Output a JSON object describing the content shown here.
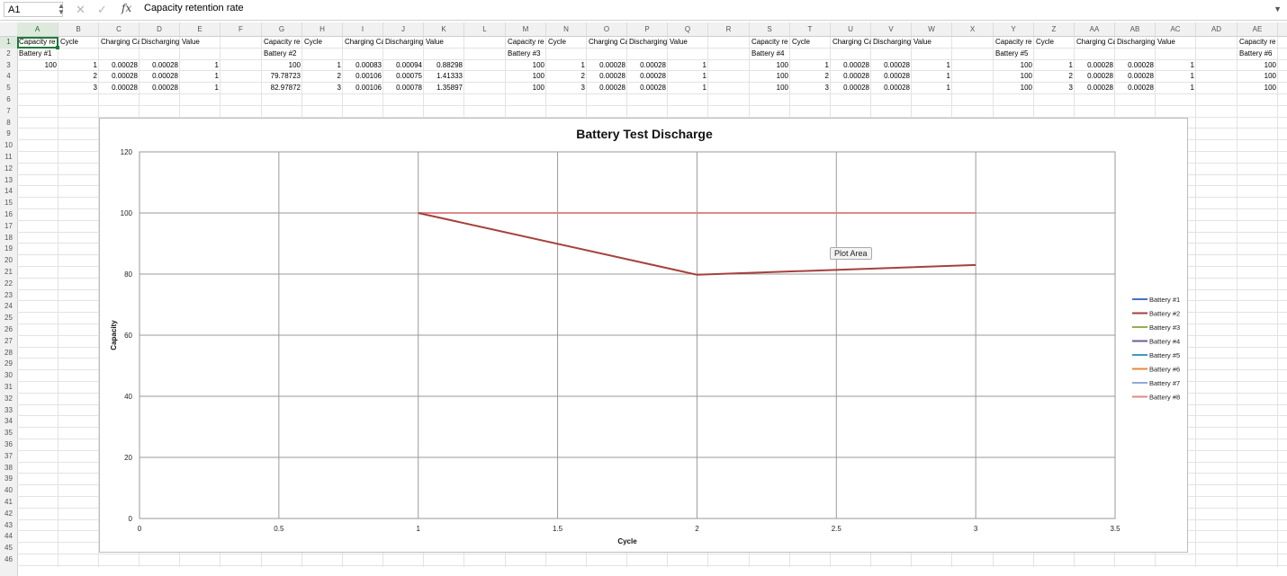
{
  "formula_bar": {
    "name_box": "A1",
    "fx_label": "fx",
    "formula": "Capacity retention rate"
  },
  "columns": [
    "A",
    "B",
    "C",
    "D",
    "E",
    "F",
    "G",
    "H",
    "I",
    "J",
    "K",
    "L",
    "M",
    "N",
    "O",
    "P",
    "Q",
    "R",
    "S",
    "T",
    "U",
    "V",
    "W",
    "X",
    "Y",
    "Z",
    "AA",
    "AB",
    "AC",
    "AD",
    "AE"
  ],
  "rows": [
    "1",
    "2",
    "3",
    "4",
    "5",
    "6",
    "7",
    "8",
    "9",
    "10",
    "11",
    "12",
    "13",
    "14",
    "15",
    "16",
    "17",
    "18",
    "19",
    "20",
    "21",
    "22",
    "23",
    "24",
    "25",
    "26",
    "27",
    "28",
    "29",
    "30",
    "31",
    "32",
    "33",
    "34",
    "35",
    "36",
    "37",
    "38",
    "39",
    "40",
    "41",
    "42",
    "43",
    "44",
    "45",
    "46"
  ],
  "cells": [
    {
      "ref": "A1",
      "text": "Capacity re"
    },
    {
      "ref": "B1",
      "text": "Cycle"
    },
    {
      "ref": "C1",
      "text": "Charging Ca"
    },
    {
      "ref": "D1",
      "text": "Discharging"
    },
    {
      "ref": "E1",
      "text": "Value"
    },
    {
      "ref": "G1",
      "text": "Capacity re"
    },
    {
      "ref": "H1",
      "text": "Cycle"
    },
    {
      "ref": "I1",
      "text": "Charging Ca"
    },
    {
      "ref": "J1",
      "text": "Discharging"
    },
    {
      "ref": "K1",
      "text": "Value"
    },
    {
      "ref": "M1",
      "text": "Capacity re"
    },
    {
      "ref": "N1",
      "text": "Cycle"
    },
    {
      "ref": "O1",
      "text": "Charging Ca"
    },
    {
      "ref": "P1",
      "text": "Discharging"
    },
    {
      "ref": "Q1",
      "text": "Value"
    },
    {
      "ref": "S1",
      "text": "Capacity re"
    },
    {
      "ref": "T1",
      "text": "Cycle"
    },
    {
      "ref": "U1",
      "text": "Charging Ca"
    },
    {
      "ref": "V1",
      "text": "Discharging"
    },
    {
      "ref": "W1",
      "text": "Value"
    },
    {
      "ref": "Y1",
      "text": "Capacity re"
    },
    {
      "ref": "Z1",
      "text": "Cycle"
    },
    {
      "ref": "AA1",
      "text": "Charging Ca"
    },
    {
      "ref": "AB1",
      "text": "Discharging"
    },
    {
      "ref": "AC1",
      "text": "Value"
    },
    {
      "ref": "AE1",
      "text": "Capacity re C"
    },
    {
      "ref": "A2",
      "text": "Battery #1"
    },
    {
      "ref": "G2",
      "text": "Battery #2"
    },
    {
      "ref": "M2",
      "text": "Battery #3"
    },
    {
      "ref": "S2",
      "text": "Battery #4"
    },
    {
      "ref": "Y2",
      "text": "Battery #5"
    },
    {
      "ref": "AE2",
      "text": "Battery #6"
    },
    {
      "ref": "A3",
      "text": "100",
      "num": true
    },
    {
      "ref": "B3",
      "text": "1",
      "num": true
    },
    {
      "ref": "C3",
      "text": "0.00028",
      "num": true
    },
    {
      "ref": "D3",
      "text": "0.00028",
      "num": true
    },
    {
      "ref": "E3",
      "text": "1",
      "num": true
    },
    {
      "ref": "G3",
      "text": "100",
      "num": true
    },
    {
      "ref": "H3",
      "text": "1",
      "num": true
    },
    {
      "ref": "I3",
      "text": "0.00083",
      "num": true
    },
    {
      "ref": "J3",
      "text": "0.00094",
      "num": true
    },
    {
      "ref": "K3",
      "text": "0.88298",
      "num": true
    },
    {
      "ref": "M3",
      "text": "100",
      "num": true
    },
    {
      "ref": "N3",
      "text": "1",
      "num": true
    },
    {
      "ref": "O3",
      "text": "0.00028",
      "num": true
    },
    {
      "ref": "P3",
      "text": "0.00028",
      "num": true
    },
    {
      "ref": "Q3",
      "text": "1",
      "num": true
    },
    {
      "ref": "S3",
      "text": "100",
      "num": true
    },
    {
      "ref": "T3",
      "text": "1",
      "num": true
    },
    {
      "ref": "U3",
      "text": "0.00028",
      "num": true
    },
    {
      "ref": "V3",
      "text": "0.00028",
      "num": true
    },
    {
      "ref": "W3",
      "text": "1",
      "num": true
    },
    {
      "ref": "Y3",
      "text": "100",
      "num": true
    },
    {
      "ref": "Z3",
      "text": "1",
      "num": true
    },
    {
      "ref": "AA3",
      "text": "0.00028",
      "num": true
    },
    {
      "ref": "AB3",
      "text": "0.00028",
      "num": true
    },
    {
      "ref": "AC3",
      "text": "1",
      "num": true
    },
    {
      "ref": "AE3",
      "text": "100",
      "num": true
    },
    {
      "ref": "B4",
      "text": "2",
      "num": true
    },
    {
      "ref": "C4",
      "text": "0.00028",
      "num": true
    },
    {
      "ref": "D4",
      "text": "0.00028",
      "num": true
    },
    {
      "ref": "E4",
      "text": "1",
      "num": true
    },
    {
      "ref": "G4",
      "text": "79.78723",
      "num": true
    },
    {
      "ref": "H4",
      "text": "2",
      "num": true
    },
    {
      "ref": "I4",
      "text": "0.00106",
      "num": true
    },
    {
      "ref": "J4",
      "text": "0.00075",
      "num": true
    },
    {
      "ref": "K4",
      "text": "1.41333",
      "num": true
    },
    {
      "ref": "M4",
      "text": "100",
      "num": true
    },
    {
      "ref": "N4",
      "text": "2",
      "num": true
    },
    {
      "ref": "O4",
      "text": "0.00028",
      "num": true
    },
    {
      "ref": "P4",
      "text": "0.00028",
      "num": true
    },
    {
      "ref": "Q4",
      "text": "1",
      "num": true
    },
    {
      "ref": "S4",
      "text": "100",
      "num": true
    },
    {
      "ref": "T4",
      "text": "2",
      "num": true
    },
    {
      "ref": "U4",
      "text": "0.00028",
      "num": true
    },
    {
      "ref": "V4",
      "text": "0.00028",
      "num": true
    },
    {
      "ref": "W4",
      "text": "1",
      "num": true
    },
    {
      "ref": "Y4",
      "text": "100",
      "num": true
    },
    {
      "ref": "Z4",
      "text": "2",
      "num": true
    },
    {
      "ref": "AA4",
      "text": "0.00028",
      "num": true
    },
    {
      "ref": "AB4",
      "text": "0.00028",
      "num": true
    },
    {
      "ref": "AC4",
      "text": "1",
      "num": true
    },
    {
      "ref": "AE4",
      "text": "100",
      "num": true
    },
    {
      "ref": "B5",
      "text": "3",
      "num": true
    },
    {
      "ref": "C5",
      "text": "0.00028",
      "num": true
    },
    {
      "ref": "D5",
      "text": "0.00028",
      "num": true
    },
    {
      "ref": "E5",
      "text": "1",
      "num": true
    },
    {
      "ref": "G5",
      "text": "82.97872",
      "num": true
    },
    {
      "ref": "H5",
      "text": "3",
      "num": true
    },
    {
      "ref": "I5",
      "text": "0.00106",
      "num": true
    },
    {
      "ref": "J5",
      "text": "0.00078",
      "num": true
    },
    {
      "ref": "K5",
      "text": "1.35897",
      "num": true
    },
    {
      "ref": "M5",
      "text": "100",
      "num": true
    },
    {
      "ref": "N5",
      "text": "3",
      "num": true
    },
    {
      "ref": "O5",
      "text": "0.00028",
      "num": true
    },
    {
      "ref": "P5",
      "text": "0.00028",
      "num": true
    },
    {
      "ref": "Q5",
      "text": "1",
      "num": true
    },
    {
      "ref": "S5",
      "text": "100",
      "num": true
    },
    {
      "ref": "T5",
      "text": "3",
      "num": true
    },
    {
      "ref": "U5",
      "text": "0.00028",
      "num": true
    },
    {
      "ref": "V5",
      "text": "0.00028",
      "num": true
    },
    {
      "ref": "W5",
      "text": "1",
      "num": true
    },
    {
      "ref": "Y5",
      "text": "100",
      "num": true
    },
    {
      "ref": "Z5",
      "text": "3",
      "num": true
    },
    {
      "ref": "AA5",
      "text": "0.00028",
      "num": true
    },
    {
      "ref": "AB5",
      "text": "0.00028",
      "num": true
    },
    {
      "ref": "AC5",
      "text": "1",
      "num": true
    },
    {
      "ref": "AE5",
      "text": "100",
      "num": true
    }
  ],
  "tooltip": "Plot Area",
  "chart_data": {
    "type": "scatter",
    "title": "Battery Test Discharge",
    "xlabel": "Cycle",
    "ylabel": "Capacity",
    "xlim": [
      0,
      3.5
    ],
    "ylim": [
      0,
      120
    ],
    "xticks": [
      0,
      0.5,
      1,
      1.5,
      2,
      2.5,
      3,
      3.5
    ],
    "yticks": [
      0,
      20,
      40,
      60,
      80,
      100,
      120
    ],
    "grid": true,
    "legend_position": "right",
    "series": [
      {
        "name": "Battery #1",
        "color": "#4472c4",
        "x": [
          1,
          2,
          3
        ],
        "y": [
          100,
          100,
          100
        ]
      },
      {
        "name": "Battery #2",
        "color": "#a5403d",
        "x": [
          1,
          2,
          3
        ],
        "y": [
          100,
          79.78723,
          82.97872
        ]
      },
      {
        "name": "Battery #3",
        "color": "#8fb14b",
        "x": [
          1,
          2,
          3
        ],
        "y": [
          100,
          100,
          100
        ]
      },
      {
        "name": "Battery #4",
        "color": "#6f5a9c",
        "x": [
          1,
          2,
          3
        ],
        "y": [
          100,
          100,
          100
        ]
      },
      {
        "name": "Battery #5",
        "color": "#3b9cc0",
        "x": [
          1,
          2,
          3
        ],
        "y": [
          100,
          100,
          100
        ]
      },
      {
        "name": "Battery #6",
        "color": "#e9893a",
        "x": [
          1,
          2,
          3
        ],
        "y": [
          100,
          100,
          100
        ]
      },
      {
        "name": "Battery #7",
        "color": "#92a9d9",
        "x": [
          1,
          2,
          3
        ],
        "y": [
          100,
          100,
          100
        ]
      },
      {
        "name": "Battery #8",
        "color": "#dd8a88",
        "x": [
          1,
          2,
          3
        ],
        "y": [
          100,
          100,
          100
        ]
      }
    ]
  }
}
